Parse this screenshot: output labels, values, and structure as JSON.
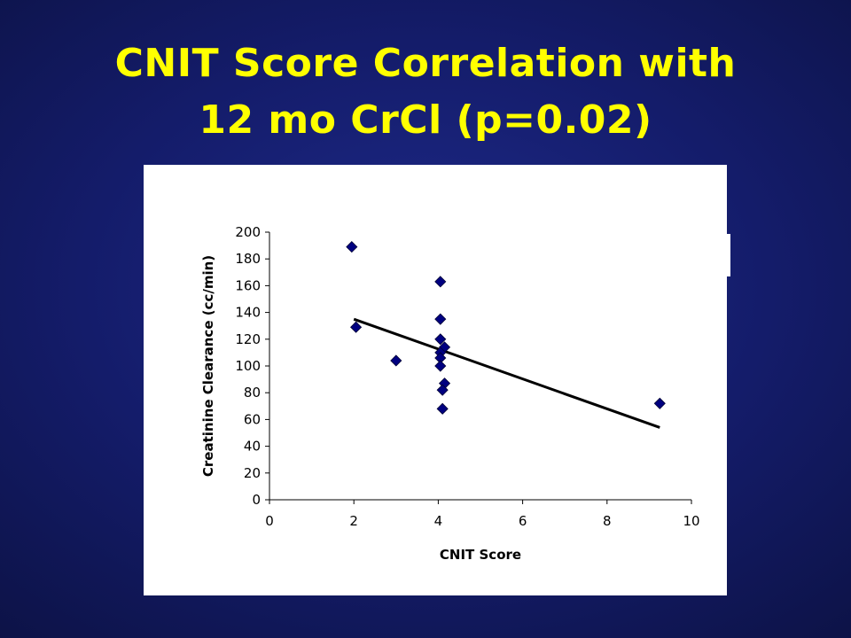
{
  "slide": {
    "title_line1": "CNIT Score Correlation with",
    "title_line2": "12 mo CrCl (p=0.02)"
  },
  "colors": {
    "title": "#ffff00",
    "marker_fill": "#000080",
    "trendline": "#000000"
  },
  "chart_data": {
    "type": "scatter",
    "title": "",
    "xlabel": "CNIT Score",
    "ylabel": "Creatinine Clearance (cc/min)",
    "xlim": [
      0,
      10
    ],
    "ylim": [
      0,
      200
    ],
    "x_ticks": [
      0,
      2,
      4,
      6,
      8,
      10
    ],
    "y_ticks": [
      0,
      20,
      40,
      60,
      80,
      100,
      120,
      140,
      160,
      180,
      200
    ],
    "grid": false,
    "legend": "none",
    "series": [
      {
        "marker": "diamond",
        "points": [
          {
            "x": 1.95,
            "y": 189
          },
          {
            "x": 2.05,
            "y": 129
          },
          {
            "x": 3.0,
            "y": 104
          },
          {
            "x": 4.05,
            "y": 163
          },
          {
            "x": 4.05,
            "y": 135
          },
          {
            "x": 4.05,
            "y": 120
          },
          {
            "x": 4.15,
            "y": 114
          },
          {
            "x": 4.05,
            "y": 110
          },
          {
            "x": 4.05,
            "y": 106
          },
          {
            "x": 4.05,
            "y": 100
          },
          {
            "x": 4.15,
            "y": 87
          },
          {
            "x": 4.1,
            "y": 82
          },
          {
            "x": 4.1,
            "y": 68
          },
          {
            "x": 9.25,
            "y": 72
          }
        ]
      }
    ],
    "trendline": {
      "type": "linear",
      "x": [
        2.0,
        9.25
      ],
      "y": [
        135,
        54
      ]
    }
  }
}
